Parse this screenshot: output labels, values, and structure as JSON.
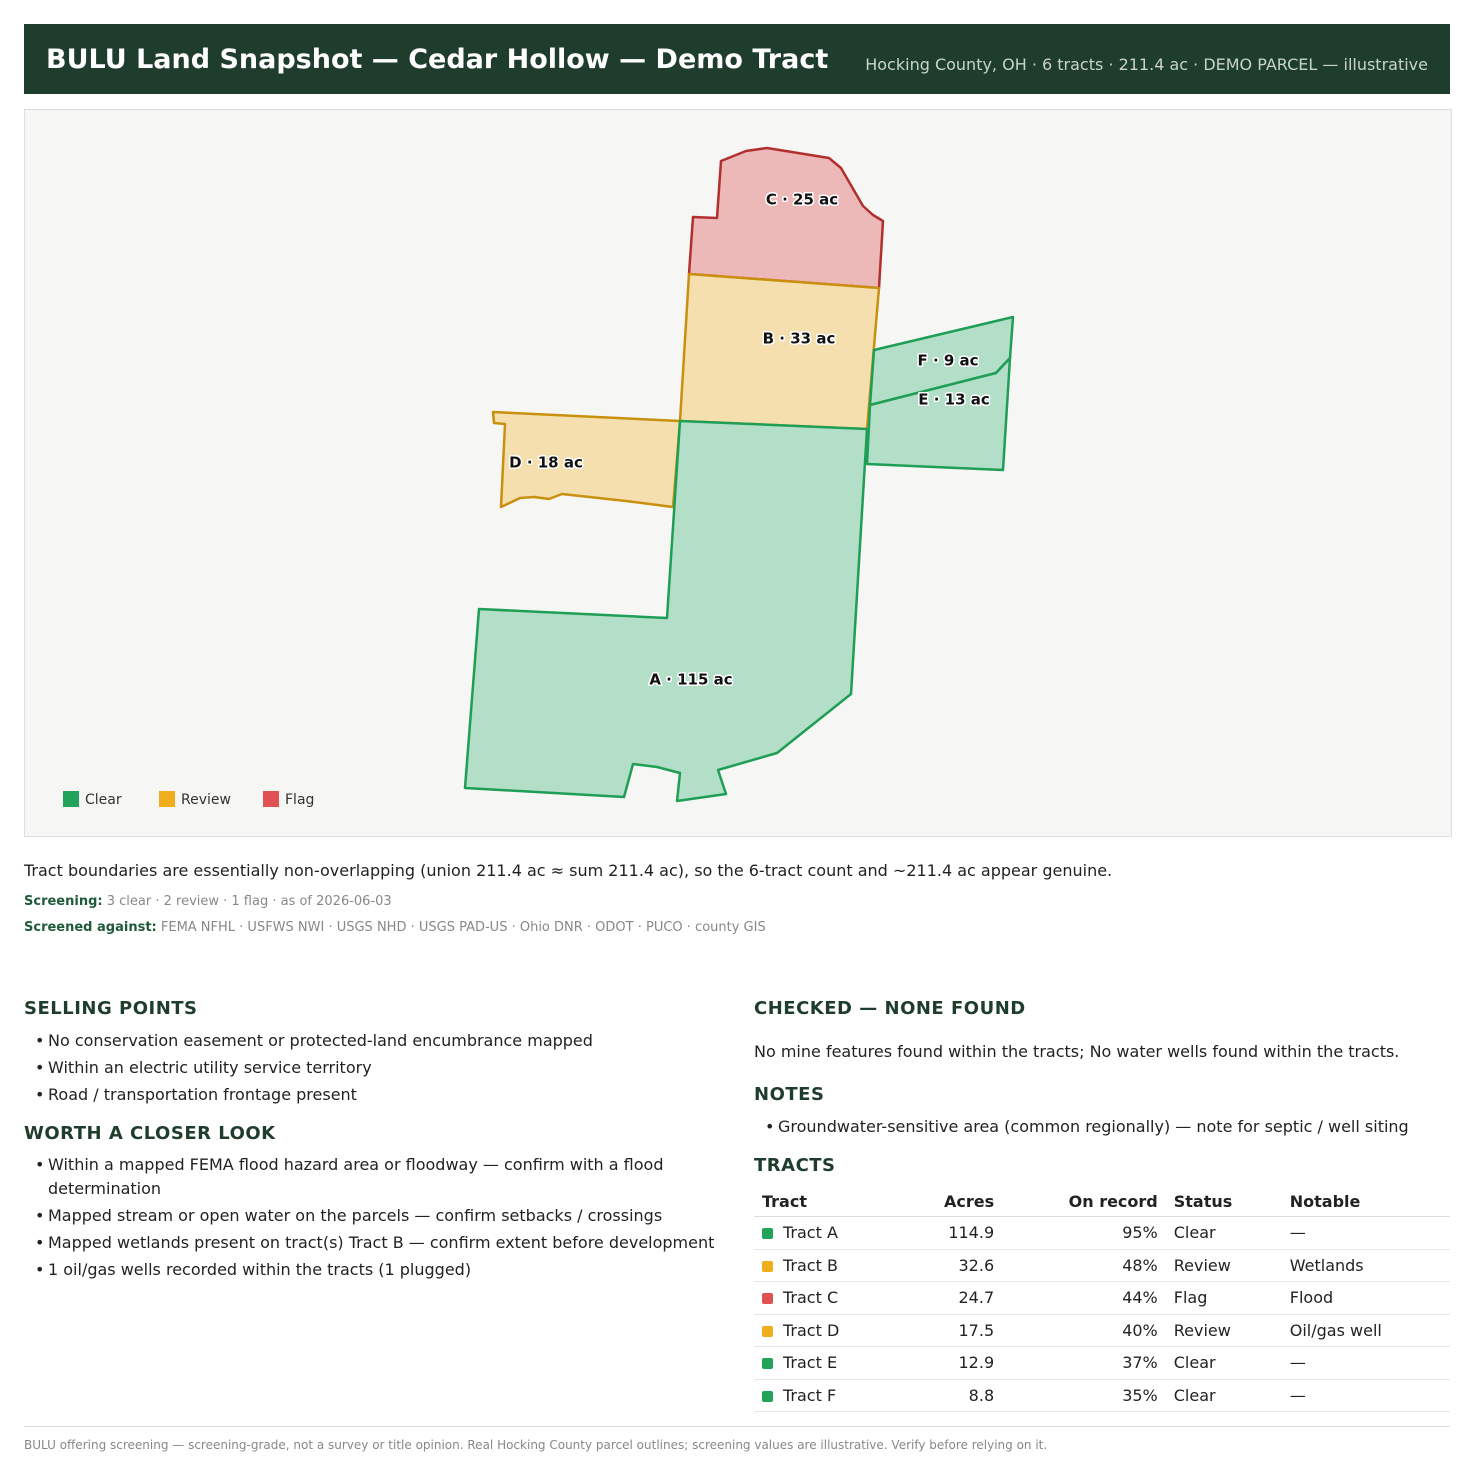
{
  "header": {
    "title": "BULU Land Snapshot — Cedar Hollow — Demo Tract",
    "subtitle": "Hocking County, OH · 6 tracts · 211.4 ac · DEMO PARCEL — illustrative"
  },
  "map": {
    "tracts": [
      {
        "label": "C · 25 ac"
      },
      {
        "label": "B · 33 ac"
      },
      {
        "label": "F · 9 ac"
      },
      {
        "label": "E · 13 ac"
      },
      {
        "label": "D · 18 ac"
      },
      {
        "label": "A · 115 ac"
      }
    ],
    "legend": [
      {
        "name": "Clear",
        "color": "#22a35a"
      },
      {
        "name": "Review",
        "color": "#f0ad1c"
      },
      {
        "name": "Flag",
        "color": "#e05252"
      }
    ]
  },
  "summary": "Tract boundaries are essentially non-overlapping (union 211.4 ac ≈ sum 211.4 ac), so the 6-tract count and ~211.4 ac appear genuine.",
  "screening": {
    "label": "Screening:",
    "text": "3 clear · 2 review · 1 flag · as of 2026-06-03"
  },
  "screened_against": {
    "label": "Screened against:",
    "text": "FEMA NFHL · USFWS NWI · USGS NHD · USGS PAD-US · Ohio DNR · ODOT · PUCO · county GIS"
  },
  "selling_points": {
    "heading": "SELLING POINTS",
    "items": [
      "No conservation easement or protected-land encumbrance mapped",
      "Within an electric utility service territory",
      "Road / transportation frontage present"
    ]
  },
  "closer_look": {
    "heading": "WORTH A CLOSER LOOK",
    "items": [
      "Within a mapped FEMA flood hazard area or floodway — confirm with a flood determination",
      "Mapped stream or open water on the parcels — confirm setbacks / crossings",
      "Mapped wetlands present on tract(s) Tract B — confirm extent before development",
      "1 oil/gas wells recorded within the tracts (1 plugged)"
    ]
  },
  "checked": {
    "heading": "CHECKED — NONE FOUND",
    "text": "No mine features found within the tracts; No water wells found within the tracts."
  },
  "notes": {
    "heading": "NOTES",
    "items": [
      "Groundwater-sensitive area (common regionally) — note for septic / well siting"
    ]
  },
  "tracts_table": {
    "heading": "TRACTS",
    "columns": [
      "Tract",
      "Acres",
      "On record",
      "Status",
      "Notable"
    ],
    "rows": [
      [
        "Tract A",
        "114.9",
        "95%",
        "Clear",
        "—"
      ],
      [
        "Tract B",
        "32.6",
        "48%",
        "Review",
        "Wetlands"
      ],
      [
        "Tract C",
        "24.7",
        "44%",
        "Flag",
        "Flood"
      ],
      [
        "Tract D",
        "17.5",
        "40%",
        "Review",
        "Oil/gas well"
      ],
      [
        "Tract E",
        "12.9",
        "37%",
        "Clear",
        "—"
      ],
      [
        "Tract F",
        "8.8",
        "35%",
        "Clear",
        "—"
      ]
    ]
  },
  "footer": "BULU offering screening — screening-grade, not a survey or title opinion. Real Hocking County parcel outlines; screening values are illustrative. Verify before relying on it."
}
